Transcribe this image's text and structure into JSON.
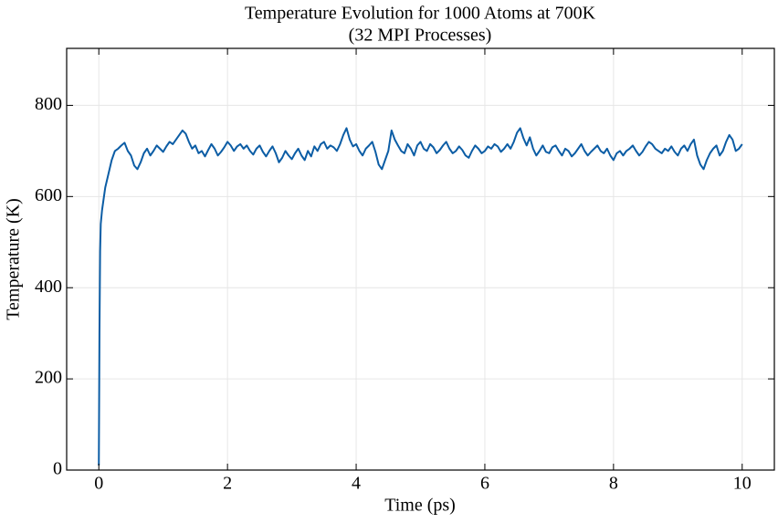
{
  "chart_data": {
    "type": "line",
    "title": "Temperature Evolution for 1000 Atoms at 700K",
    "subtitle": "(32 MPI Processes)",
    "xlabel": "Time (ps)",
    "ylabel": "Temperature (K)",
    "xlim": [
      -0.5,
      10.5
    ],
    "ylim": [
      0,
      925
    ],
    "xticks": [
      0,
      2,
      4,
      6,
      8,
      10
    ],
    "yticks": [
      0,
      200,
      400,
      600,
      800
    ],
    "grid": true,
    "x": [
      0,
      0.01,
      0.02,
      0.03,
      0.05,
      0.08,
      0.1,
      0.15,
      0.2,
      0.25,
      0.3,
      0.35,
      0.4,
      0.45,
      0.5,
      0.55,
      0.6,
      0.65,
      0.7,
      0.75,
      0.8,
      0.85,
      0.9,
      0.95,
      1.0,
      1.05,
      1.1,
      1.15,
      1.2,
      1.25,
      1.3,
      1.35,
      1.4,
      1.45,
      1.5,
      1.55,
      1.6,
      1.65,
      1.7,
      1.75,
      1.8,
      1.85,
      1.9,
      1.95,
      2.0,
      2.05,
      2.1,
      2.15,
      2.2,
      2.25,
      2.3,
      2.35,
      2.4,
      2.45,
      2.5,
      2.55,
      2.6,
      2.65,
      2.7,
      2.75,
      2.8,
      2.85,
      2.9,
      2.95,
      3.0,
      3.05,
      3.1,
      3.15,
      3.2,
      3.25,
      3.3,
      3.35,
      3.4,
      3.45,
      3.5,
      3.55,
      3.6,
      3.65,
      3.7,
      3.75,
      3.8,
      3.85,
      3.9,
      3.95,
      4.0,
      4.05,
      4.1,
      4.15,
      4.2,
      4.25,
      4.3,
      4.35,
      4.4,
      4.45,
      4.5,
      4.55,
      4.6,
      4.65,
      4.7,
      4.75,
      4.8,
      4.85,
      4.9,
      4.95,
      5.0,
      5.05,
      5.1,
      5.15,
      5.2,
      5.25,
      5.3,
      5.35,
      5.4,
      5.45,
      5.5,
      5.55,
      5.6,
      5.65,
      5.7,
      5.75,
      5.8,
      5.85,
      5.9,
      5.95,
      6.0,
      6.05,
      6.1,
      6.15,
      6.2,
      6.25,
      6.3,
      6.35,
      6.4,
      6.45,
      6.5,
      6.55,
      6.6,
      6.65,
      6.7,
      6.75,
      6.8,
      6.85,
      6.9,
      6.95,
      7.0,
      7.05,
      7.1,
      7.15,
      7.2,
      7.25,
      7.3,
      7.35,
      7.4,
      7.45,
      7.5,
      7.55,
      7.6,
      7.65,
      7.7,
      7.75,
      7.8,
      7.85,
      7.9,
      7.95,
      8.0,
      8.05,
      8.1,
      8.15,
      8.2,
      8.25,
      8.3,
      8.35,
      8.4,
      8.45,
      8.5,
      8.55,
      8.6,
      8.65,
      8.7,
      8.75,
      8.8,
      8.85,
      8.9,
      8.95,
      9.0,
      9.05,
      9.1,
      9.15,
      9.2,
      9.25,
      9.3,
      9.35,
      9.4,
      9.45,
      9.5,
      9.55,
      9.6,
      9.65,
      9.7,
      9.75,
      9.8,
      9.85,
      9.9,
      9.95,
      10.0
    ],
    "series": [
      {
        "name": "Temperature",
        "color": "#0c5da5",
        "values": [
          10,
          300,
          480,
          540,
          570,
          600,
          620,
          650,
          680,
          700,
          705,
          712,
          718,
          700,
          690,
          668,
          660,
          675,
          695,
          705,
          690,
          700,
          712,
          705,
          698,
          710,
          720,
          715,
          725,
          735,
          745,
          738,
          720,
          705,
          712,
          695,
          700,
          688,
          702,
          715,
          705,
          690,
          698,
          708,
          720,
          712,
          700,
          710,
          715,
          705,
          712,
          700,
          692,
          705,
          712,
          698,
          688,
          700,
          710,
          695,
          675,
          685,
          700,
          690,
          682,
          695,
          705,
          690,
          680,
          700,
          688,
          710,
          700,
          715,
          720,
          705,
          712,
          708,
          700,
          715,
          735,
          750,
          725,
          710,
          715,
          700,
          690,
          705,
          712,
          720,
          698,
          670,
          660,
          680,
          700,
          745,
          725,
          712,
          700,
          695,
          715,
          705,
          690,
          712,
          720,
          705,
          700,
          715,
          708,
          695,
          702,
          712,
          720,
          705,
          695,
          700,
          710,
          702,
          690,
          685,
          700,
          712,
          705,
          695,
          700,
          710,
          705,
          715,
          710,
          698,
          705,
          715,
          705,
          720,
          740,
          750,
          728,
          712,
          730,
          705,
          690,
          700,
          712,
          698,
          695,
          708,
          712,
          700,
          690,
          705,
          700,
          688,
          695,
          705,
          715,
          700,
          690,
          698,
          705,
          712,
          700,
          695,
          705,
          690,
          680,
          695,
          700,
          690,
          700,
          705,
          712,
          700,
          690,
          698,
          710,
          720,
          715,
          705,
          700,
          695,
          705,
          700,
          710,
          698,
          690,
          705,
          712,
          700,
          715,
          725,
          690,
          670,
          660,
          680,
          695,
          705,
          712,
          690,
          700,
          720,
          735,
          725,
          700,
          705,
          715
        ]
      }
    ]
  }
}
